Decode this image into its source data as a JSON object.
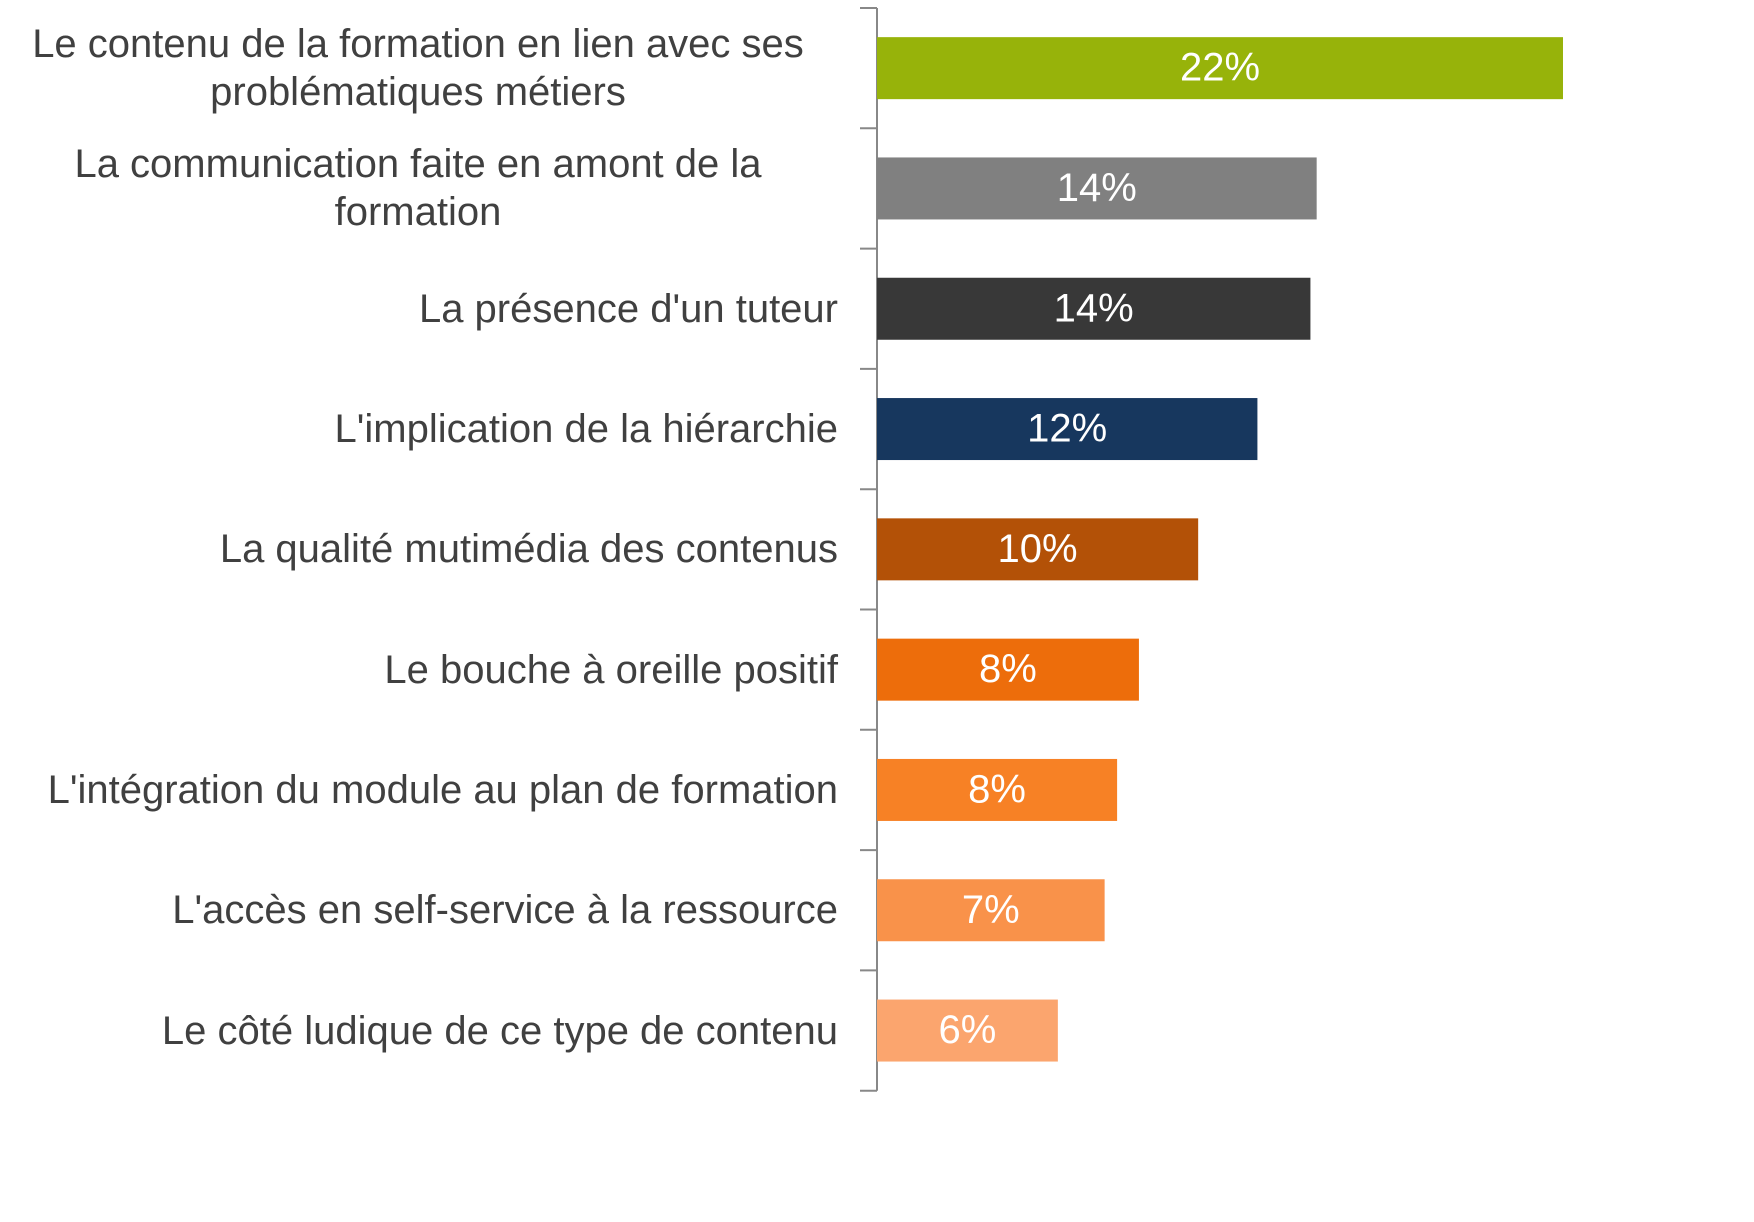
{
  "chart_data": {
    "type": "barh",
    "categories": [
      "Le contenu de la formation en lien avec ses problématiques métiers",
      "La communication faite en amont de la formation",
      "La présence d'un tuteur",
      "L'implication de la hiérarchie",
      "La qualité mutimédia des contenus",
      "Le bouche à oreille positif",
      "L'intégration du module au plan de formation",
      "L'accès en self-service à la ressource",
      "Le côté ludique de ce type de contenu"
    ],
    "values": [
      22,
      14.1,
      13.9,
      12.2,
      10.3,
      8.4,
      7.7,
      7.3,
      5.8
    ],
    "value_labels": [
      "22%",
      "14%",
      "14%",
      "12%",
      "10%",
      "8%",
      "8%",
      "7%",
      "6%"
    ],
    "colors": [
      "#97b30a",
      "#808080",
      "#383838",
      "#17375e",
      "#b35107",
      "#ed6d0b",
      "#f78125",
      "#f9924a",
      "#fba56e"
    ]
  }
}
